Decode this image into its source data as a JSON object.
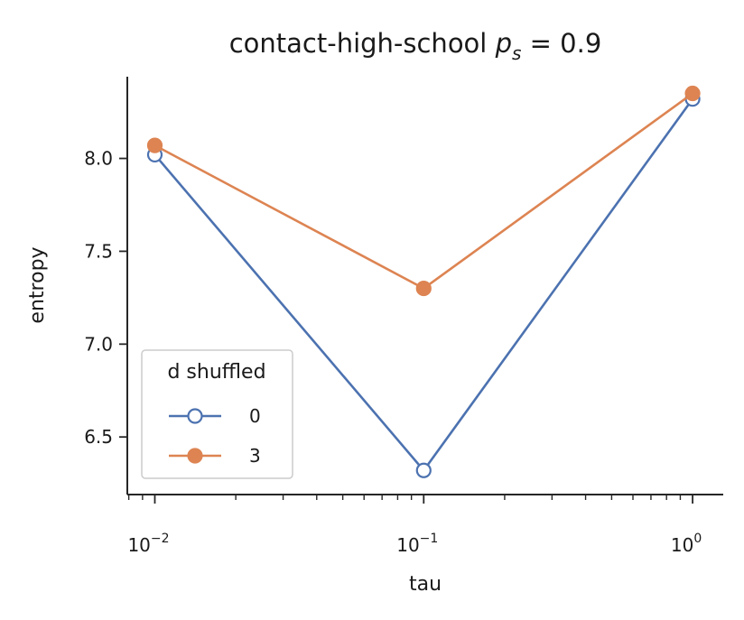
{
  "chart_data": {
    "type": "line",
    "title_prefix": "contact-high-school ",
    "title_math": "p",
    "title_sub": "s",
    "title_suffix": " = 0.9",
    "xlabel": "tau",
    "ylabel": "entropy",
    "xscale": "log",
    "x": [
      0.01,
      0.1,
      1
    ],
    "xlim": [
      0.0079,
      1.3
    ],
    "ylim": [
      6.19,
      8.44
    ],
    "yticks": [
      6.5,
      7.0,
      7.5,
      8.0
    ],
    "ytick_labels": [
      "6.5",
      "7.0",
      "7.5",
      "8.0"
    ],
    "xticks": [
      {
        "base": "10",
        "exp": "−2"
      },
      {
        "base": "10",
        "exp": "−1"
      },
      {
        "base": "10",
        "exp": "0"
      }
    ],
    "grid": false,
    "legend": {
      "title": "d shuffled",
      "placement": "lower-left"
    },
    "series": [
      {
        "name": "0",
        "values": [
          8.02,
          6.32,
          8.32
        ],
        "color": "#4c72b0",
        "marker": "open-circle"
      },
      {
        "name": "3",
        "values": [
          8.07,
          7.3,
          8.35
        ],
        "color": "#dd8452",
        "marker": "filled-circle"
      }
    ]
  }
}
